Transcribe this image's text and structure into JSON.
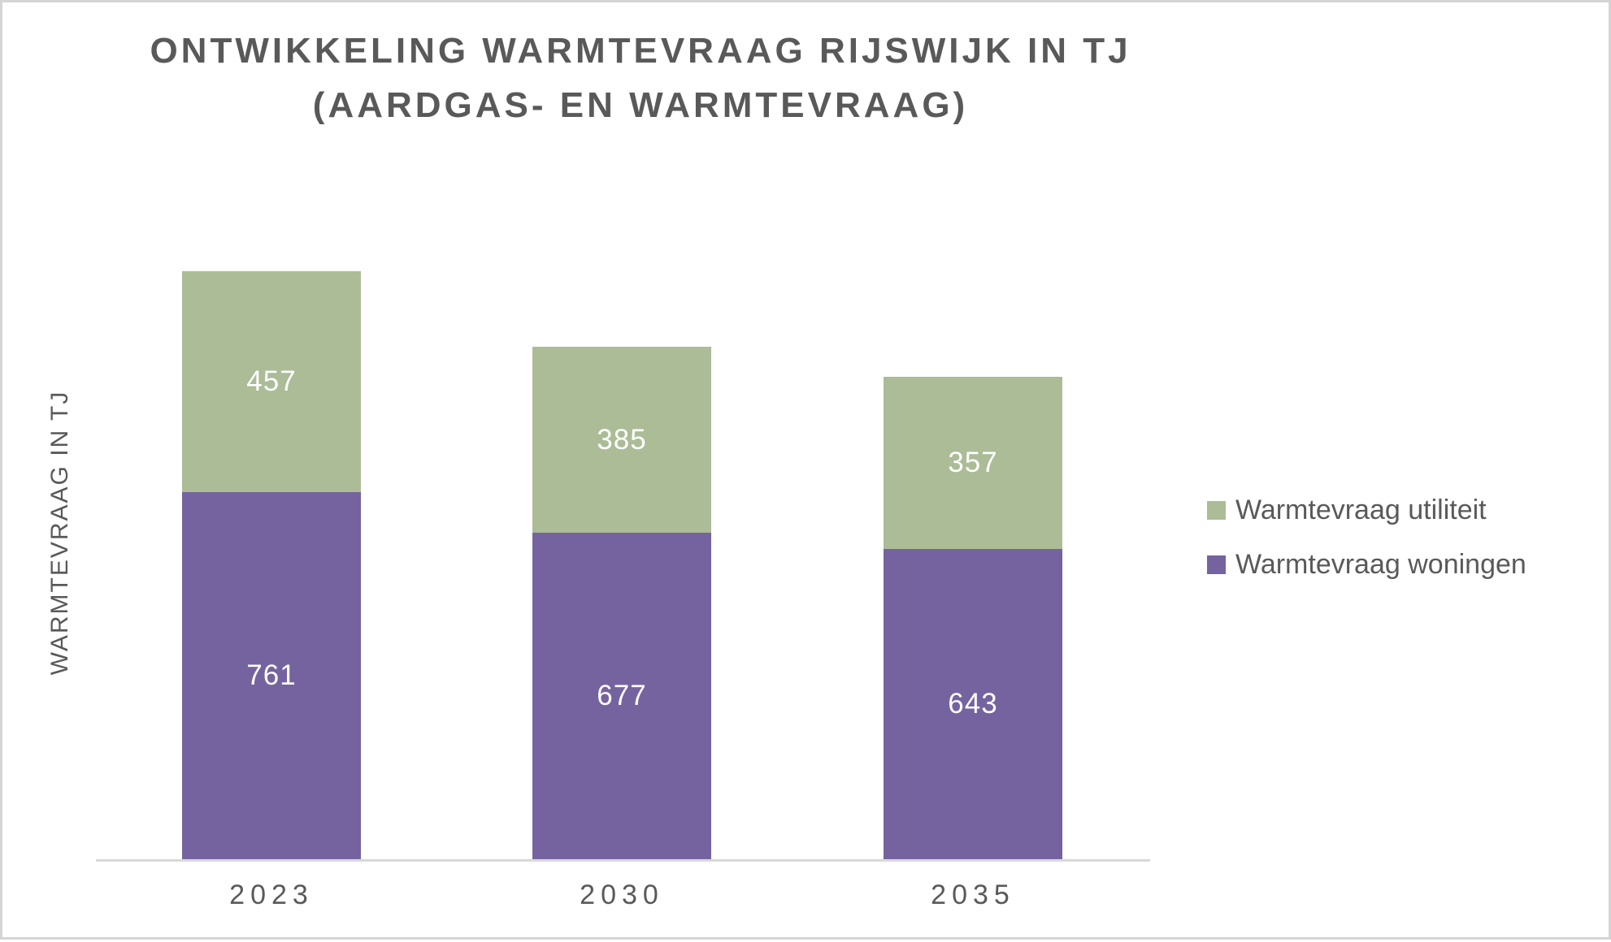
{
  "title": {
    "line1": "ONTWIKKELING WARMTEVRAAG RIJSWIJK IN TJ",
    "line2": "(AARDGAS- EN WARMTEVRAAG)"
  },
  "y_axis_title": "WARMTEVRAAG IN TJ",
  "legend": {
    "items": [
      {
        "label": "Warmtevraag utiliteit",
        "color": "#abbc97"
      },
      {
        "label": "Warmtevraag woningen",
        "color": "#75639f"
      }
    ]
  },
  "colors": {
    "utiliteit_green": "#abbc97",
    "woningen_purple": "#75639f",
    "axis_line": "#d9d9d9",
    "text_gray": "#595959",
    "data_label_white": "#ffffff"
  },
  "chart_data": {
    "type": "bar",
    "stacked": true,
    "title": "ONTWIKKELING WARMTEVRAAG RIJSWIJK IN TJ (AARDGAS- EN WARMTEVRAAG)",
    "ylabel": "WARMTEVRAAG IN TJ",
    "categories": [
      "2023",
      "2030",
      "2035"
    ],
    "series": [
      {
        "name": "Warmtevraag woningen",
        "color": "#75639f",
        "values": [
          761,
          677,
          643
        ]
      },
      {
        "name": "Warmtevraag utiliteit",
        "color": "#abbc97",
        "values": [
          457,
          385,
          357
        ]
      }
    ],
    "totals": [
      1218,
      1062,
      1000
    ],
    "ylim": [
      0,
      1250
    ],
    "grid": false,
    "legend_position": "right",
    "data_labels": true
  }
}
